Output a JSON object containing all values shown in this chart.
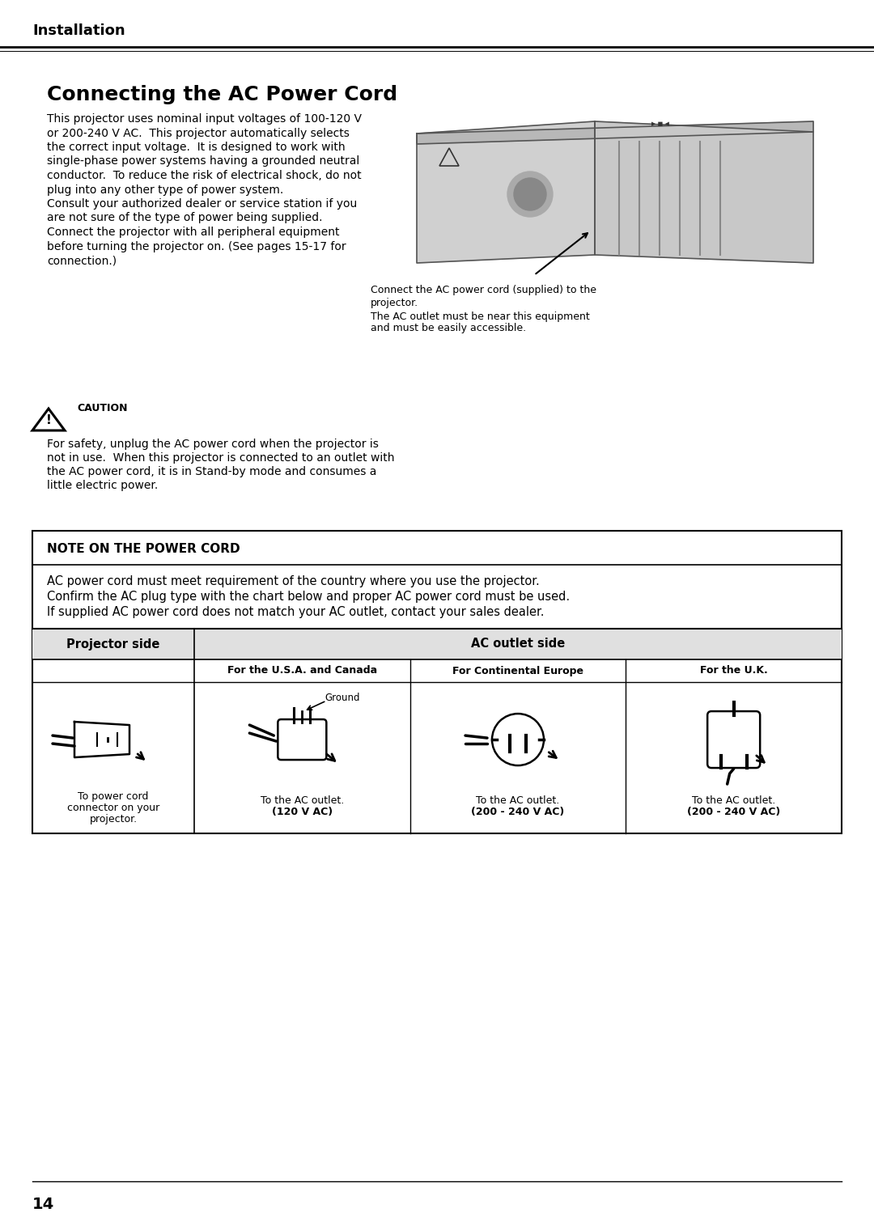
{
  "bg_color": "#ffffff",
  "page_number": "14",
  "header_text": "Installation",
  "title": "Connecting the AC Power Cord",
  "body_text_lines": [
    "This projector uses nominal input voltages of 100-120 V",
    "or 200-240 V AC.  This projector automatically selects",
    "the correct input voltage.  It is designed to work with",
    "single-phase power systems having a grounded neutral",
    "conductor.  To reduce the risk of electrical shock, do not",
    "plug into any other type of power system.",
    "Consult your authorized dealer or service station if you",
    "are not sure of the type of power being supplied.",
    "Connect the projector with all peripheral equipment",
    "before turning the projector on. (See pages 15-17 for",
    "connection.)"
  ],
  "img_caption1": "Connect the AC power cord (supplied) to the",
  "img_caption1b": "projector.",
  "img_caption2": "The AC outlet must be near this equipment",
  "img_caption2b": "and must be easily accessible.",
  "caution_label": "CAUTION",
  "caution_text_lines": [
    "For safety, unplug the AC power cord when the projector is",
    "not in use.  When this projector is connected to an outlet with",
    "the AC power cord, it is in Stand-by mode and consumes a",
    "little electric power."
  ],
  "note_title": "NOTE ON THE POWER CORD",
  "note_text_lines": [
    "AC power cord must meet requirement of the country where you use the projector.",
    "Confirm the AC plug type with the chart below and proper AC power cord must be used.",
    "If supplied AC power cord does not match your AC outlet, contact your sales dealer."
  ],
  "table_header_col1": "Projector side",
  "table_header_col2": "AC outlet side",
  "subheader_usa": "For the U.S.A. and Canada",
  "subheader_europe": "For Continental Europe",
  "subheader_uk": "For the U.K.",
  "caption_proj_line1": "To power cord",
  "caption_proj_line2": "connector on your",
  "caption_proj_line3": "projector.",
  "caption_usa_line1": "To the AC outlet.",
  "caption_usa_line2": "(120 V AC)",
  "caption_europe_line1": "To the AC outlet.",
  "caption_europe_line2": "(200 - 240 V AC)",
  "caption_uk_line1": "To the AC outlet.",
  "caption_uk_line2": "(200 - 240 V AC)",
  "ground_label": "Ground"
}
